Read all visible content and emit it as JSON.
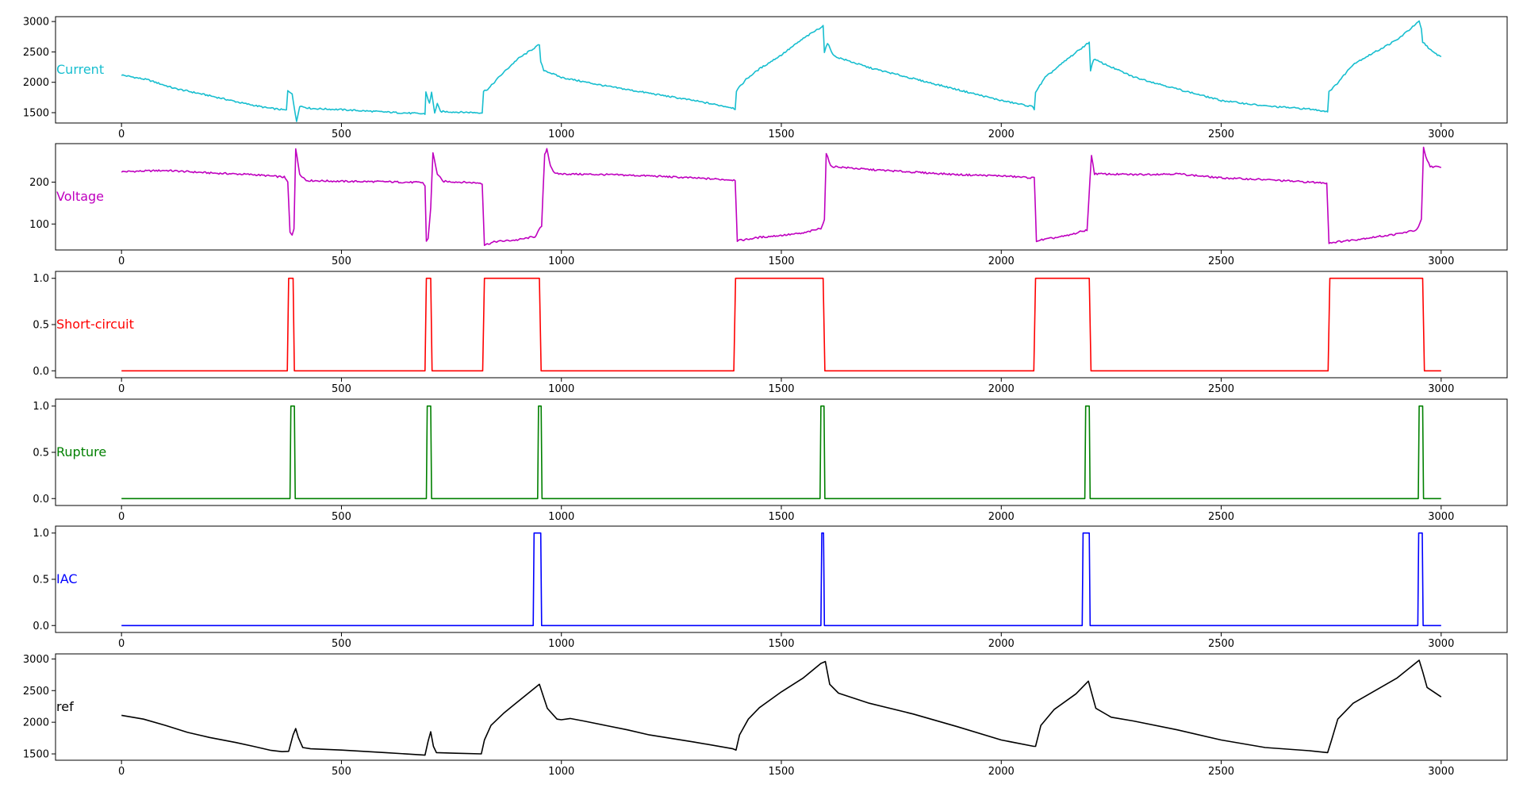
{
  "chart_data": [
    {
      "type": "line",
      "series": [
        {
          "name": "Current",
          "color": "#17becf"
        }
      ],
      "xlim": [
        -150,
        3150
      ],
      "ylim": [
        1330,
        3080
      ],
      "xticks": [
        0,
        500,
        1000,
        1500,
        2000,
        2500,
        3000
      ],
      "yticks": [
        1500,
        2000,
        2500,
        3000
      ],
      "noise": 22,
      "points": [
        [
          0,
          2120
        ],
        [
          60,
          2040
        ],
        [
          120,
          1900
        ],
        [
          200,
          1780
        ],
        [
          280,
          1650
        ],
        [
          330,
          1580
        ],
        [
          375,
          1540
        ],
        [
          378,
          1860
        ],
        [
          388,
          1820
        ],
        [
          393,
          1560
        ],
        [
          398,
          1360
        ],
        [
          405,
          1610
        ],
        [
          430,
          1570
        ],
        [
          500,
          1550
        ],
        [
          600,
          1510
        ],
        [
          690,
          1480
        ],
        [
          692,
          1840
        ],
        [
          700,
          1650
        ],
        [
          705,
          1830
        ],
        [
          712,
          1500
        ],
        [
          718,
          1640
        ],
        [
          725,
          1520
        ],
        [
          760,
          1510
        ],
        [
          820,
          1500
        ],
        [
          823,
          1850
        ],
        [
          835,
          1900
        ],
        [
          860,
          2100
        ],
        [
          900,
          2380
        ],
        [
          950,
          2620
        ],
        [
          953,
          2330
        ],
        [
          960,
          2200
        ],
        [
          1000,
          2080
        ],
        [
          1100,
          1940
        ],
        [
          1200,
          1820
        ],
        [
          1300,
          1700
        ],
        [
          1390,
          1580
        ],
        [
          1395,
          1560
        ],
        [
          1398,
          1860
        ],
        [
          1420,
          2050
        ],
        [
          1450,
          2220
        ],
        [
          1500,
          2450
        ],
        [
          1550,
          2720
        ],
        [
          1595,
          2930
        ],
        [
          1598,
          2500
        ],
        [
          1605,
          2640
        ],
        [
          1620,
          2430
        ],
        [
          1700,
          2240
        ],
        [
          1800,
          2060
        ],
        [
          1900,
          1880
        ],
        [
          2000,
          1700
        ],
        [
          2070,
          1600
        ],
        [
          2075,
          1560
        ],
        [
          2078,
          1840
        ],
        [
          2100,
          2080
        ],
        [
          2150,
          2380
        ],
        [
          2200,
          2660
        ],
        [
          2203,
          2200
        ],
        [
          2210,
          2380
        ],
        [
          2300,
          2090
        ],
        [
          2400,
          1890
        ],
        [
          2500,
          1700
        ],
        [
          2600,
          1610
        ],
        [
          2700,
          1560
        ],
        [
          2742,
          1520
        ],
        [
          2745,
          1850
        ],
        [
          2760,
          1950
        ],
        [
          2800,
          2300
        ],
        [
          2900,
          2700
        ],
        [
          2950,
          3000
        ],
        [
          2955,
          2870
        ],
        [
          2958,
          2660
        ],
        [
          2962,
          2640
        ],
        [
          2980,
          2500
        ],
        [
          3000,
          2420
        ]
      ]
    },
    {
      "type": "line",
      "series": [
        {
          "name": "Voltage",
          "color": "#bf00bf"
        }
      ],
      "xlim": [
        -150,
        3150
      ],
      "ylim": [
        38,
        292
      ],
      "xticks": [
        0,
        500,
        1000,
        1500,
        2000,
        2500,
        3000
      ],
      "yticks": [
        100,
        200
      ],
      "noise": 3.5,
      "points": [
        [
          0,
          225
        ],
        [
          100,
          228
        ],
        [
          200,
          222
        ],
        [
          300,
          218
        ],
        [
          370,
          212
        ],
        [
          378,
          200
        ],
        [
          383,
          80
        ],
        [
          388,
          75
        ],
        [
          392,
          90
        ],
        [
          396,
          280
        ],
        [
          405,
          220
        ],
        [
          420,
          204
        ],
        [
          500,
          202
        ],
        [
          600,
          201
        ],
        [
          685,
          199
        ],
        [
          690,
          190
        ],
        [
          693,
          60
        ],
        [
          697,
          65
        ],
        [
          703,
          140
        ],
        [
          708,
          270
        ],
        [
          718,
          220
        ],
        [
          730,
          202
        ],
        [
          815,
          198
        ],
        [
          820,
          197
        ],
        [
          825,
          50
        ],
        [
          850,
          58
        ],
        [
          900,
          62
        ],
        [
          940,
          70
        ],
        [
          955,
          95
        ],
        [
          962,
          265
        ],
        [
          967,
          280
        ],
        [
          975,
          240
        ],
        [
          985,
          220
        ],
        [
          1100,
          218
        ],
        [
          1200,
          215
        ],
        [
          1300,
          210
        ],
        [
          1395,
          205
        ],
        [
          1400,
          60
        ],
        [
          1450,
          68
        ],
        [
          1550,
          78
        ],
        [
          1590,
          90
        ],
        [
          1598,
          110
        ],
        [
          1602,
          270
        ],
        [
          1612,
          238
        ],
        [
          1700,
          230
        ],
        [
          1800,
          224
        ],
        [
          1900,
          218
        ],
        [
          2000,
          215
        ],
        [
          2075,
          210
        ],
        [
          2080,
          60
        ],
        [
          2150,
          72
        ],
        [
          2195,
          86
        ],
        [
          2205,
          265
        ],
        [
          2212,
          220
        ],
        [
          2300,
          218
        ],
        [
          2400,
          220
        ],
        [
          2500,
          210
        ],
        [
          2600,
          206
        ],
        [
          2700,
          200
        ],
        [
          2740,
          198
        ],
        [
          2745,
          55
        ],
        [
          2800,
          62
        ],
        [
          2900,
          76
        ],
        [
          2945,
          86
        ],
        [
          2955,
          110
        ],
        [
          2960,
          282
        ],
        [
          2965,
          260
        ],
        [
          2975,
          238
        ],
        [
          3000,
          235
        ]
      ]
    },
    {
      "type": "line",
      "series": [
        {
          "name": "Short-circuit",
          "color": "#ff0000"
        }
      ],
      "xlim": [
        -150,
        3150
      ],
      "ylim": [
        -0.075,
        1.075
      ],
      "xticks": [
        0,
        500,
        1000,
        1500,
        2000,
        2500,
        3000
      ],
      "yticks": [
        0.0,
        0.5,
        1.0
      ],
      "noise": 0,
      "points": [
        [
          0,
          0
        ],
        [
          377,
          0
        ],
        [
          380,
          1
        ],
        [
          390,
          1
        ],
        [
          393,
          0
        ],
        [
          690,
          0
        ],
        [
          693,
          1
        ],
        [
          703,
          1
        ],
        [
          706,
          0
        ],
        [
          821,
          0
        ],
        [
          825,
          1
        ],
        [
          950,
          1
        ],
        [
          954,
          0
        ],
        [
          1392,
          0
        ],
        [
          1396,
          1
        ],
        [
          1595,
          1
        ],
        [
          1599,
          0
        ],
        [
          2074,
          0
        ],
        [
          2078,
          1
        ],
        [
          2200,
          1
        ],
        [
          2204,
          0
        ],
        [
          2743,
          0
        ],
        [
          2747,
          1
        ],
        [
          2958,
          1
        ],
        [
          2962,
          0
        ],
        [
          3000,
          0
        ]
      ]
    },
    {
      "type": "line",
      "series": [
        {
          "name": "Rupture",
          "color": "#008000"
        }
      ],
      "xlim": [
        -150,
        3150
      ],
      "ylim": [
        -0.075,
        1.075
      ],
      "xticks": [
        0,
        500,
        1000,
        1500,
        2000,
        2500,
        3000
      ],
      "yticks": [
        0.0,
        0.5,
        1.0
      ],
      "noise": 0,
      "points": [
        [
          0,
          0
        ],
        [
          383,
          0
        ],
        [
          385,
          1
        ],
        [
          393,
          1
        ],
        [
          395,
          0
        ],
        [
          693,
          0
        ],
        [
          695,
          1
        ],
        [
          703,
          1
        ],
        [
          705,
          0
        ],
        [
          946,
          0
        ],
        [
          948,
          1
        ],
        [
          954,
          1
        ],
        [
          956,
          0
        ],
        [
          1588,
          0
        ],
        [
          1590,
          1
        ],
        [
          1597,
          1
        ],
        [
          1599,
          0
        ],
        [
          2190,
          0
        ],
        [
          2192,
          1
        ],
        [
          2200,
          1
        ],
        [
          2202,
          0
        ],
        [
          2948,
          0
        ],
        [
          2950,
          1
        ],
        [
          2958,
          1
        ],
        [
          2960,
          0
        ],
        [
          3000,
          0
        ]
      ]
    },
    {
      "type": "line",
      "series": [
        {
          "name": "IAC",
          "color": "#0000ff"
        }
      ],
      "xlim": [
        -150,
        3150
      ],
      "ylim": [
        -0.075,
        1.075
      ],
      "xticks": [
        0,
        500,
        1000,
        1500,
        2000,
        2500,
        3000
      ],
      "yticks": [
        0.0,
        0.5,
        1.0
      ],
      "noise": 0,
      "points": [
        [
          0,
          0
        ],
        [
          936,
          0
        ],
        [
          938,
          1
        ],
        [
          953,
          1
        ],
        [
          955,
          0
        ],
        [
          1590,
          0
        ],
        [
          1592,
          1
        ],
        [
          1596,
          1
        ],
        [
          1598,
          0
        ],
        [
          2184,
          0
        ],
        [
          2186,
          1
        ],
        [
          2200,
          1
        ],
        [
          2202,
          0
        ],
        [
          2947,
          0
        ],
        [
          2949,
          1
        ],
        [
          2957,
          1
        ],
        [
          2959,
          0
        ],
        [
          3000,
          0
        ]
      ]
    },
    {
      "type": "line",
      "series": [
        {
          "name": "ref",
          "color": "#000000"
        }
      ],
      "xlim": [
        -150,
        3150
      ],
      "ylim": [
        1400,
        3080
      ],
      "xticks": [
        0,
        500,
        1000,
        1500,
        2000,
        2500,
        3000
      ],
      "yticks": [
        1500,
        2000,
        2500,
        3000
      ],
      "noise": 0,
      "points": [
        [
          0,
          2110
        ],
        [
          50,
          2050
        ],
        [
          100,
          1950
        ],
        [
          150,
          1840
        ],
        [
          200,
          1760
        ],
        [
          260,
          1680
        ],
        [
          300,
          1620
        ],
        [
          340,
          1555
        ],
        [
          365,
          1535
        ],
        [
          380,
          1540
        ],
        [
          390,
          1800
        ],
        [
          396,
          1900
        ],
        [
          402,
          1760
        ],
        [
          412,
          1600
        ],
        [
          430,
          1580
        ],
        [
          500,
          1560
        ],
        [
          600,
          1520
        ],
        [
          690,
          1480
        ],
        [
          697,
          1700
        ],
        [
          703,
          1850
        ],
        [
          709,
          1620
        ],
        [
          716,
          1520
        ],
        [
          760,
          1510
        ],
        [
          818,
          1500
        ],
        [
          825,
          1720
        ],
        [
          840,
          1950
        ],
        [
          870,
          2150
        ],
        [
          900,
          2320
        ],
        [
          950,
          2600
        ],
        [
          958,
          2430
        ],
        [
          968,
          2220
        ],
        [
          990,
          2050
        ],
        [
          1000,
          2040
        ],
        [
          1020,
          2060
        ],
        [
          1050,
          2020
        ],
        [
          1100,
          1950
        ],
        [
          1150,
          1880
        ],
        [
          1200,
          1800
        ],
        [
          1300,
          1690
        ],
        [
          1390,
          1580
        ],
        [
          1397,
          1560
        ],
        [
          1405,
          1800
        ],
        [
          1425,
          2050
        ],
        [
          1450,
          2230
        ],
        [
          1500,
          2480
        ],
        [
          1550,
          2700
        ],
        [
          1590,
          2930
        ],
        [
          1600,
          2960
        ],
        [
          1610,
          2600
        ],
        [
          1630,
          2460
        ],
        [
          1700,
          2300
        ],
        [
          1800,
          2130
        ],
        [
          1900,
          1930
        ],
        [
          2000,
          1720
        ],
        [
          2074,
          1620
        ],
        [
          2078,
          1620
        ],
        [
          2090,
          1950
        ],
        [
          2120,
          2200
        ],
        [
          2170,
          2450
        ],
        [
          2198,
          2650
        ],
        [
          2204,
          2500
        ],
        [
          2215,
          2220
        ],
        [
          2250,
          2080
        ],
        [
          2300,
          2020
        ],
        [
          2400,
          1880
        ],
        [
          2500,
          1720
        ],
        [
          2600,
          1600
        ],
        [
          2700,
          1550
        ],
        [
          2742,
          1520
        ],
        [
          2750,
          1700
        ],
        [
          2765,
          2050
        ],
        [
          2800,
          2300
        ],
        [
          2900,
          2700
        ],
        [
          2950,
          2980
        ],
        [
          2958,
          2800
        ],
        [
          2968,
          2550
        ],
        [
          3000,
          2400
        ]
      ]
    }
  ]
}
